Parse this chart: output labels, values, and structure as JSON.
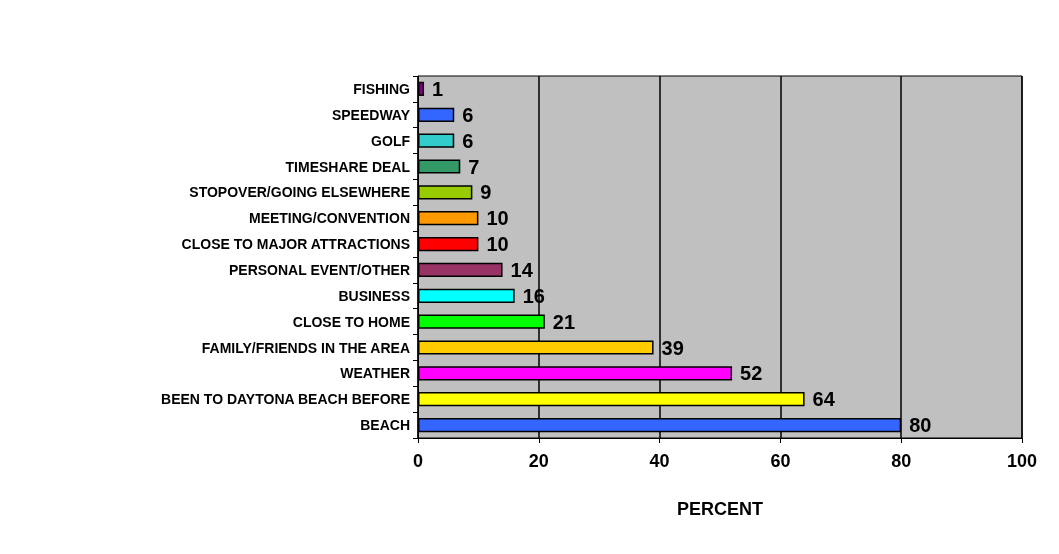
{
  "chart_data": {
    "type": "bar",
    "orientation": "horizontal",
    "xlabel": "PERCENT",
    "categories": [
      "FISHING",
      "SPEEDWAY",
      "GOLF",
      "TIMESHARE DEAL",
      "STOPOVER/GOING ELSEWHERE",
      "MEETING/CONVENTION",
      "CLOSE TO MAJOR ATTRACTIONS",
      "PERSONAL EVENT/OTHER",
      "BUSINESS",
      "CLOSE TO HOME",
      "FAMILY/FRIENDS IN THE AREA",
      "WEATHER",
      "BEEN TO DAYTONA BEACH BEFORE",
      "BEACH"
    ],
    "values": [
      1,
      6,
      6,
      7,
      9,
      10,
      10,
      14,
      16,
      21,
      39,
      52,
      64,
      80
    ],
    "colors": [
      "#800080",
      "#3366ff",
      "#33cccc",
      "#339966",
      "#99cc00",
      "#ff9900",
      "#ff0000",
      "#993366",
      "#00ffff",
      "#00ff00",
      "#ffcc00",
      "#ff00ff",
      "#ffff00",
      "#3366ff"
    ],
    "xlim": [
      0,
      100
    ],
    "xticks": [
      0,
      20,
      40,
      60,
      80,
      100
    ],
    "grid": "x",
    "data_labels": true
  }
}
